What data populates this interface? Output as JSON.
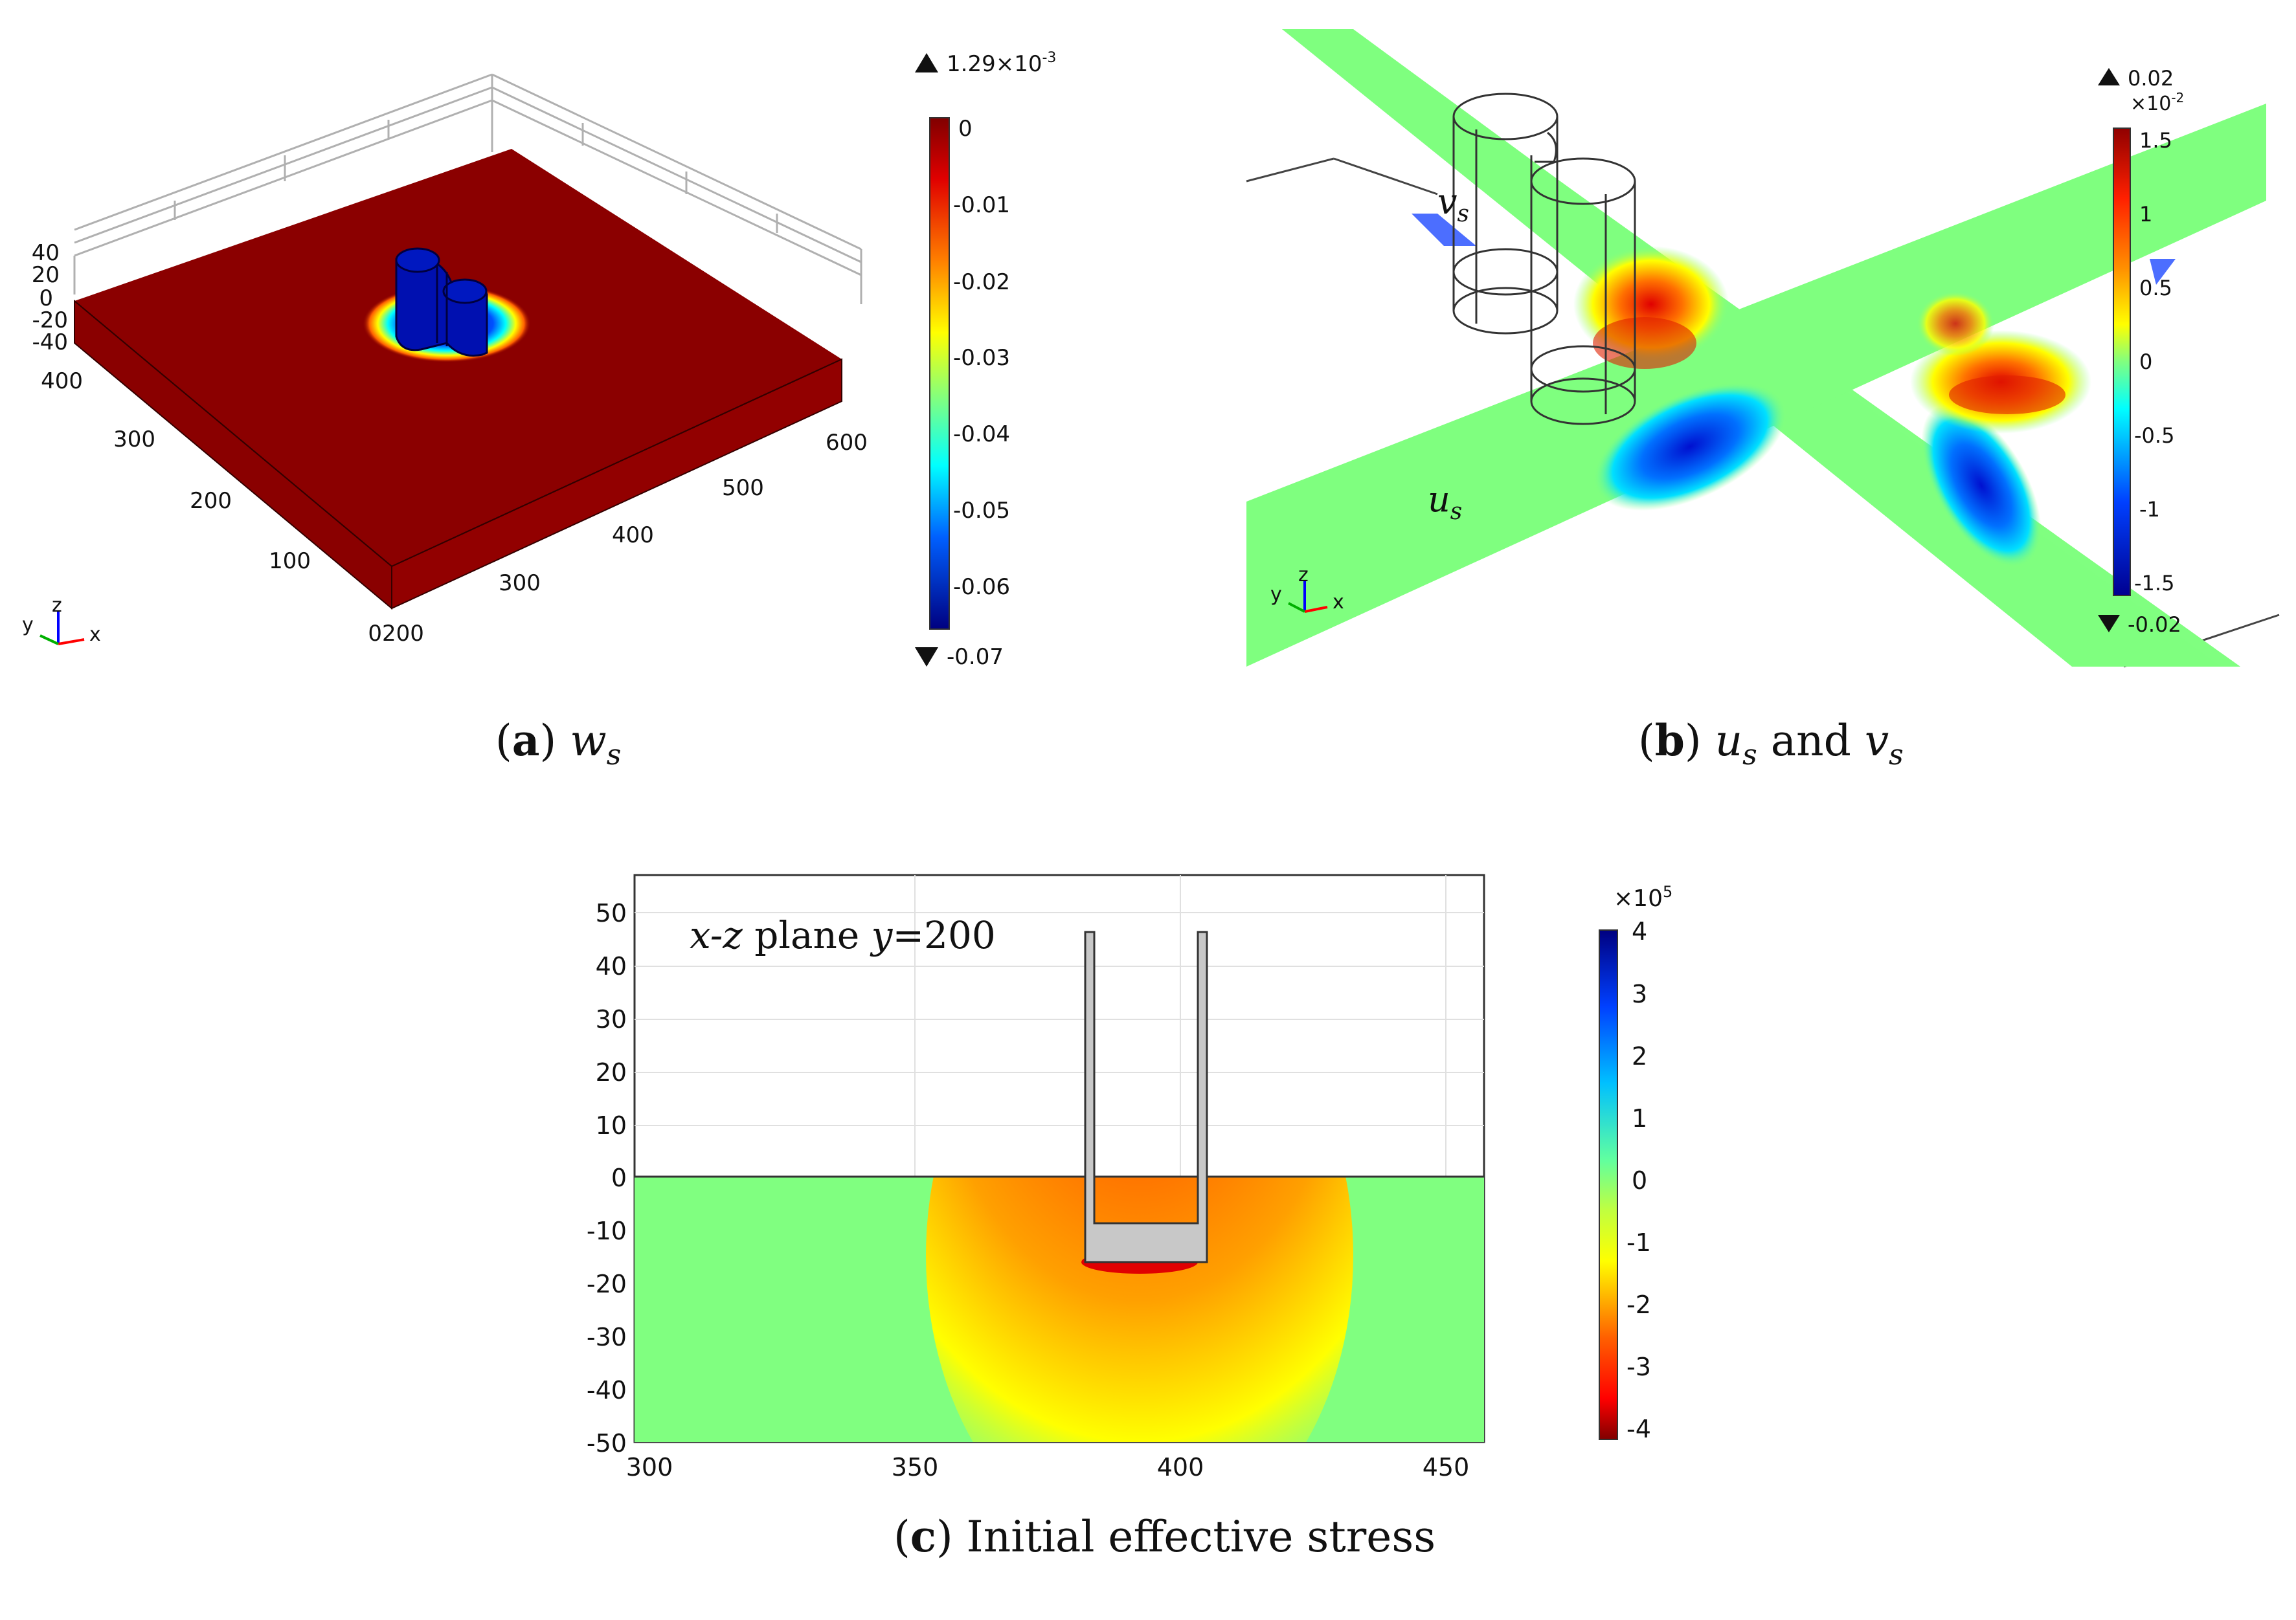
{
  "panel_a": {
    "caption_letter": "a",
    "caption_symbol": "w",
    "caption_sub": "s",
    "axis_z_ticks": [
      "40",
      "20",
      "0",
      "-20",
      "-40"
    ],
    "axis_y_ticks": [
      "400",
      "300",
      "200",
      "100",
      "0"
    ],
    "axis_x_ticks": [
      "200",
      "300",
      "400",
      "500",
      "600"
    ],
    "triad": {
      "y": "y",
      "z": "z",
      "x": "x"
    },
    "colorbar": {
      "max_label": "1.29×10",
      "max_exp": "-3",
      "min_label": "-0.07",
      "ticks": [
        "0",
        "-0.01",
        "-0.02",
        "-0.03",
        "-0.04",
        "-0.05",
        "-0.06"
      ]
    }
  },
  "panel_b": {
    "caption_letter": "b",
    "caption_u": "u",
    "caption_u_sub": "s",
    "caption_and": "and",
    "caption_v": "v",
    "caption_v_sub": "s",
    "label_v": "v",
    "label_v_sub": "s",
    "label_u": "u",
    "label_u_sub": "s",
    "triad": {
      "y": "y",
      "z": "z",
      "x": "x"
    },
    "colorbar": {
      "max_label": "0.02",
      "multiplier": "×10",
      "multiplier_exp": "-2",
      "min_label": "-0.02",
      "ticks": [
        "1.5",
        "1",
        "0.5",
        "0",
        "-0.5",
        "-1",
        "-1.5"
      ]
    }
  },
  "panel_c": {
    "caption_letter": "c",
    "caption_text": "Initial effective stress",
    "annotation_xz": "x-z",
    "annotation_plane": "plane",
    "annotation_y": "y",
    "annotation_val": "=200",
    "y_ticks": [
      "50",
      "40",
      "30",
      "20",
      "10",
      "0",
      "-10",
      "-20",
      "-30",
      "-40",
      "-50"
    ],
    "x_ticks": [
      "300",
      "350",
      "400",
      "450"
    ],
    "colorbar": {
      "multiplier": "×10",
      "multiplier_exp": "5",
      "ticks": [
        "4",
        "3",
        "2",
        "1",
        "0",
        "-1",
        "-2",
        "-3",
        "-4"
      ]
    }
  },
  "colors": {
    "red_dark": "#8b0000",
    "green": "#7fff7f",
    "blue_dark": "#00008f",
    "structure_gray": "#c8c8c8"
  }
}
